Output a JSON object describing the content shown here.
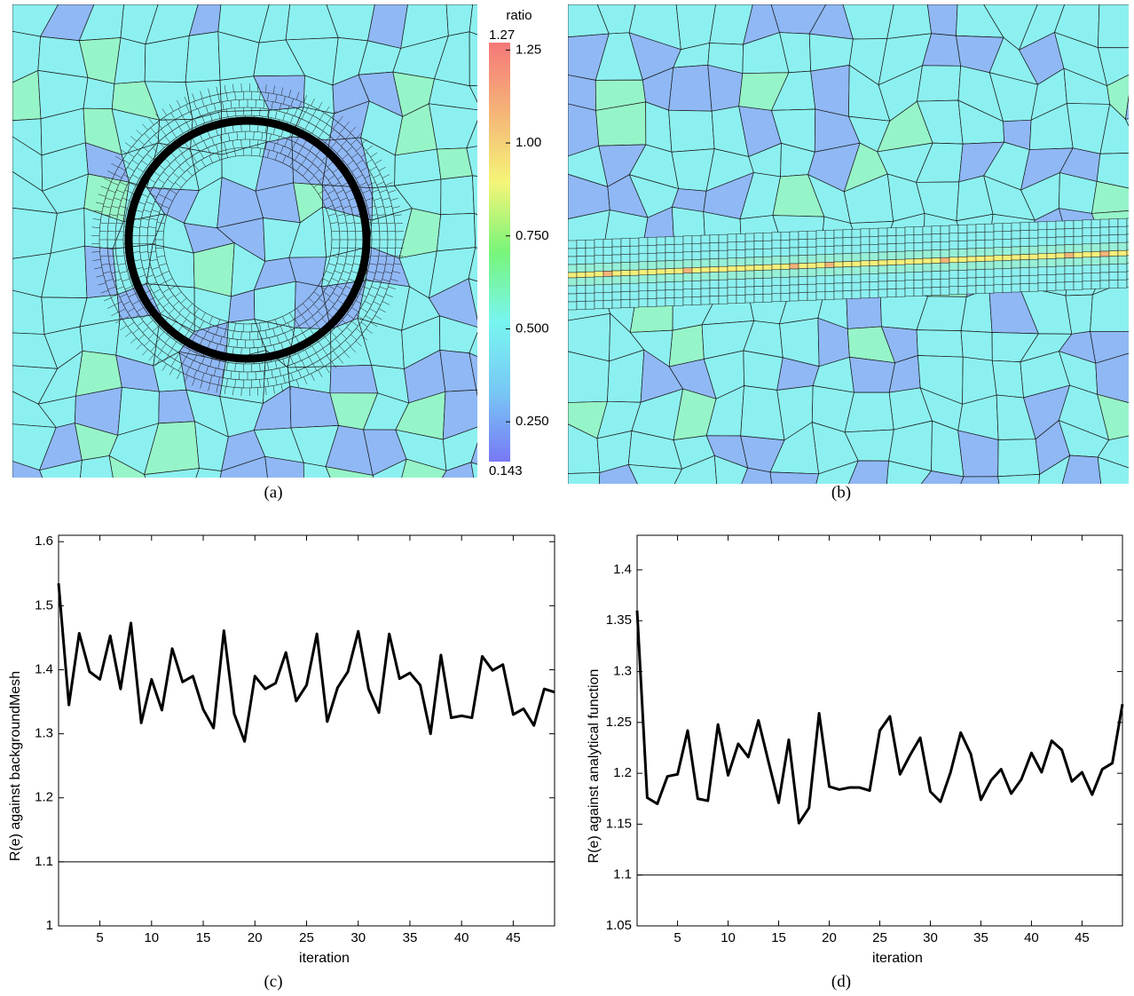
{
  "chart_data": [
    {
      "type": "mesh",
      "caption": "(a)",
      "colorbar": {
        "title": "ratio",
        "clim": [
          0.143,
          1.27
        ],
        "ticks": [
          {
            "value": 0.25,
            "label": "0.250"
          },
          {
            "value": 0.5,
            "label": "0.500"
          },
          {
            "value": 0.75,
            "label": "0.750"
          },
          {
            "value": 1,
            "label": "1.00"
          },
          1.25
        ],
        "colors": [
          "#7878f5",
          "#78c8f5",
          "#78f5f0",
          "#78f57a",
          "#f5f578",
          "#f5b478",
          "#f57878"
        ]
      }
    },
    {
      "type": "mesh",
      "caption": "(b)"
    },
    {
      "type": "line",
      "caption": "(c)",
      "x_label": "iteration",
      "y_label": "R(e) against backgroundMesh",
      "x": [
        1,
        2,
        3,
        4,
        5,
        6,
        7,
        8,
        9,
        10,
        11,
        12,
        13,
        14,
        15,
        16,
        17,
        18,
        19,
        20,
        21,
        22,
        23,
        24,
        25,
        26,
        27,
        28,
        29,
        30,
        31,
        32,
        33,
        34,
        35,
        36,
        37,
        38,
        39,
        40,
        41,
        42,
        43,
        44,
        45,
        46,
        47,
        48,
        49
      ],
      "values": [
        1.535,
        1.345,
        1.457,
        1.397,
        1.385,
        1.453,
        1.37,
        1.473,
        1.317,
        1.385,
        1.337,
        1.433,
        1.381,
        1.39,
        1.338,
        1.309,
        1.461,
        1.331,
        1.288,
        1.39,
        1.37,
        1.379,
        1.427,
        1.351,
        1.376,
        1.456,
        1.319,
        1.372,
        1.397,
        1.46,
        1.37,
        1.333,
        1.456,
        1.386,
        1.395,
        1.376,
        1.3,
        1.423,
        1.325,
        1.328,
        1.325,
        1.421,
        1.399,
        1.408,
        1.33,
        1.339,
        1.313,
        1.37,
        1.365
      ],
      "color": "#000000",
      "reference_line": 1.1,
      "xlim": [
        1,
        49
      ],
      "ylim": [
        1,
        1.61
      ],
      "xticks": [
        5,
        10,
        15,
        20,
        25,
        30,
        35,
        40,
        45
      ],
      "yticks": [
        1,
        1.1,
        1.2,
        1.3,
        1.4,
        1.5,
        1.6
      ]
    },
    {
      "type": "line",
      "caption": "(d)",
      "x_label": "iteration",
      "y_label": "R(e) against analytical function",
      "x": [
        1,
        2,
        3,
        4,
        5,
        6,
        7,
        8,
        9,
        10,
        11,
        12,
        13,
        14,
        15,
        16,
        17,
        18,
        19,
        20,
        21,
        22,
        23,
        24,
        25,
        26,
        27,
        28,
        29,
        30,
        31,
        32,
        33,
        34,
        35,
        36,
        37,
        38,
        39,
        40,
        41,
        42,
        43,
        44,
        45,
        46,
        47,
        48,
        49
      ],
      "values": [
        1.36,
        1.176,
        1.17,
        1.197,
        1.199,
        1.242,
        1.175,
        1.173,
        1.248,
        1.198,
        1.229,
        1.216,
        1.252,
        1.211,
        1.171,
        1.233,
        1.151,
        1.166,
        1.259,
        1.187,
        1.184,
        1.186,
        1.186,
        1.183,
        1.242,
        1.256,
        1.199,
        1.218,
        1.235,
        1.182,
        1.172,
        1.201,
        1.24,
        1.219,
        1.174,
        1.193,
        1.204,
        1.18,
        1.194,
        1.22,
        1.201,
        1.232,
        1.223,
        1.192,
        1.201,
        1.179,
        1.204,
        1.21,
        1.268
      ],
      "color": "#000000",
      "reference_line": 1.1,
      "xlim": [
        1,
        49
      ],
      "ylim": [
        1.05,
        1.434
      ],
      "xticks": [
        5,
        10,
        15,
        20,
        25,
        30,
        35,
        40,
        45
      ],
      "yticks": [
        1.05,
        1.1,
        1.15,
        1.2,
        1.25,
        1.3,
        1.35,
        1.4
      ]
    }
  ]
}
